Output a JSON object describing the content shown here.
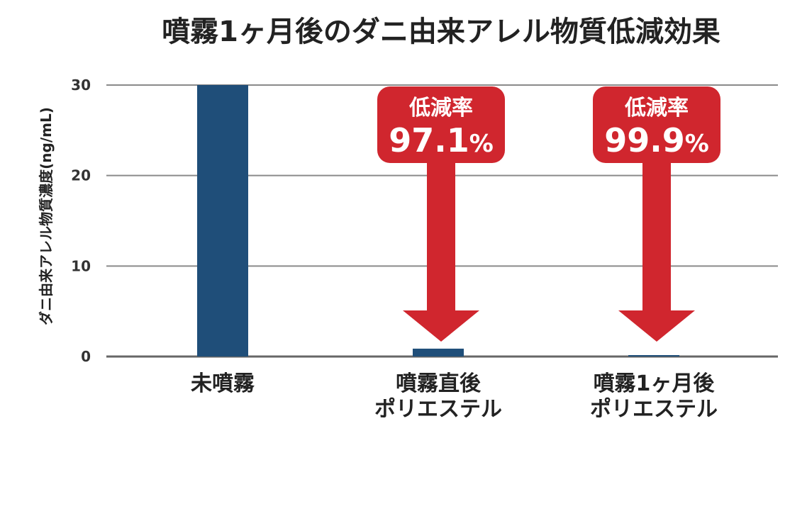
{
  "chart_data": {
    "type": "bar",
    "title": "噴霧1ヶ月後のダニ由来アレル物質低減効果",
    "ylabel": "ダニ由来アレル物質濃度(ng/mL)",
    "xlabel": "",
    "ylim": [
      0,
      30
    ],
    "yticks": [
      0,
      10,
      20,
      30
    ],
    "grid": true,
    "categories": [
      [
        "未噴霧"
      ],
      [
        "噴霧直後",
        "ポリエステル"
      ],
      [
        "噴霧1ヶ月後",
        "ポリエステル"
      ]
    ],
    "values": [
      30,
      0.87,
      0.03
    ],
    "bar_color": "#1f4e79",
    "annotations": [
      {
        "category_index": 1,
        "label": "低減率",
        "value": "97.1",
        "unit": "%",
        "color": "#d0262e"
      },
      {
        "category_index": 2,
        "label": "低減率",
        "value": "99.9",
        "unit": "%",
        "color": "#d0262e"
      }
    ]
  }
}
